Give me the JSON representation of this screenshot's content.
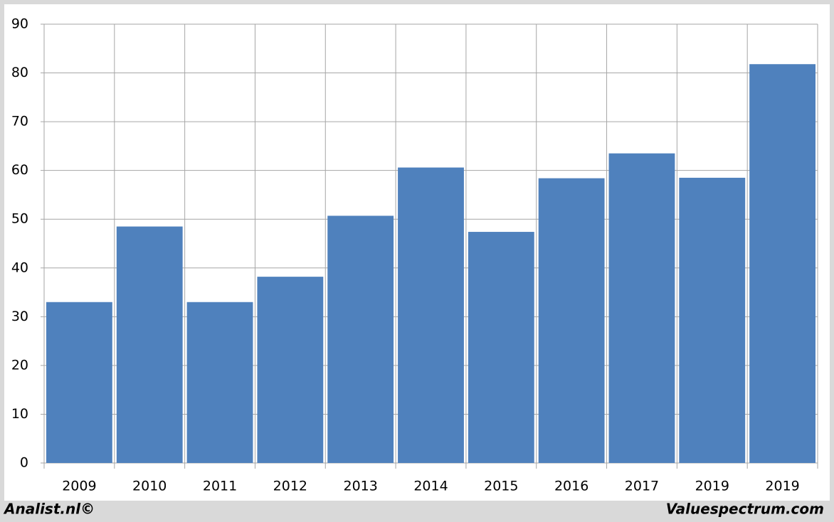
{
  "chart_data": {
    "type": "bar",
    "categories": [
      "2009",
      "2010",
      "2011",
      "2012",
      "2013",
      "2014",
      "2015",
      "2016",
      "2017",
      "2019",
      "2019"
    ],
    "values": [
      33,
      48.5,
      33,
      38.2,
      50.7,
      60.6,
      47.4,
      58.4,
      63.5,
      58.5,
      81.8
    ],
    "color": "#4f81bd",
    "ylim": [
      0,
      90
    ],
    "yticks": [
      0,
      10,
      20,
      30,
      40,
      50,
      60,
      70,
      80,
      90
    ],
    "grid": true
  },
  "footer": {
    "left": "Analist.nl©",
    "right": "Valuespectrum.com"
  }
}
